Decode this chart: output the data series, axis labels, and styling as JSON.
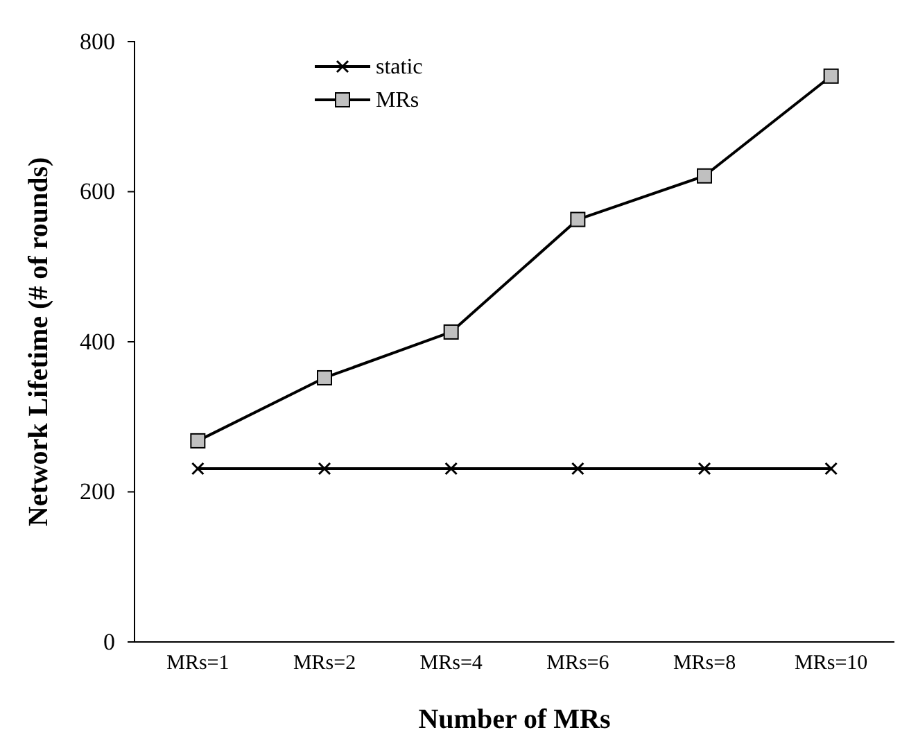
{
  "chart_data": {
    "type": "line",
    "xlabel": "Number of MRs",
    "ylabel": "Network Lifetime (# of rounds)",
    "categories": [
      "MRs=1",
      "MRs=2",
      "MRs=4",
      "MRs=6",
      "MRs=8",
      "MRs=10"
    ],
    "series": [
      {
        "name": "static",
        "color": "#000000",
        "marker": "cross",
        "values": [
          231,
          231,
          231,
          231,
          231,
          231
        ]
      },
      {
        "name": "MRs",
        "color": "#000000",
        "marker": "square",
        "values": [
          268,
          352,
          413,
          563,
          621,
          754
        ]
      }
    ],
    "ylim": [
      0,
      800
    ],
    "yticks": [
      0,
      200,
      400,
      600,
      800
    ],
    "grid": false,
    "legend": "top",
    "line_style": "solid"
  }
}
